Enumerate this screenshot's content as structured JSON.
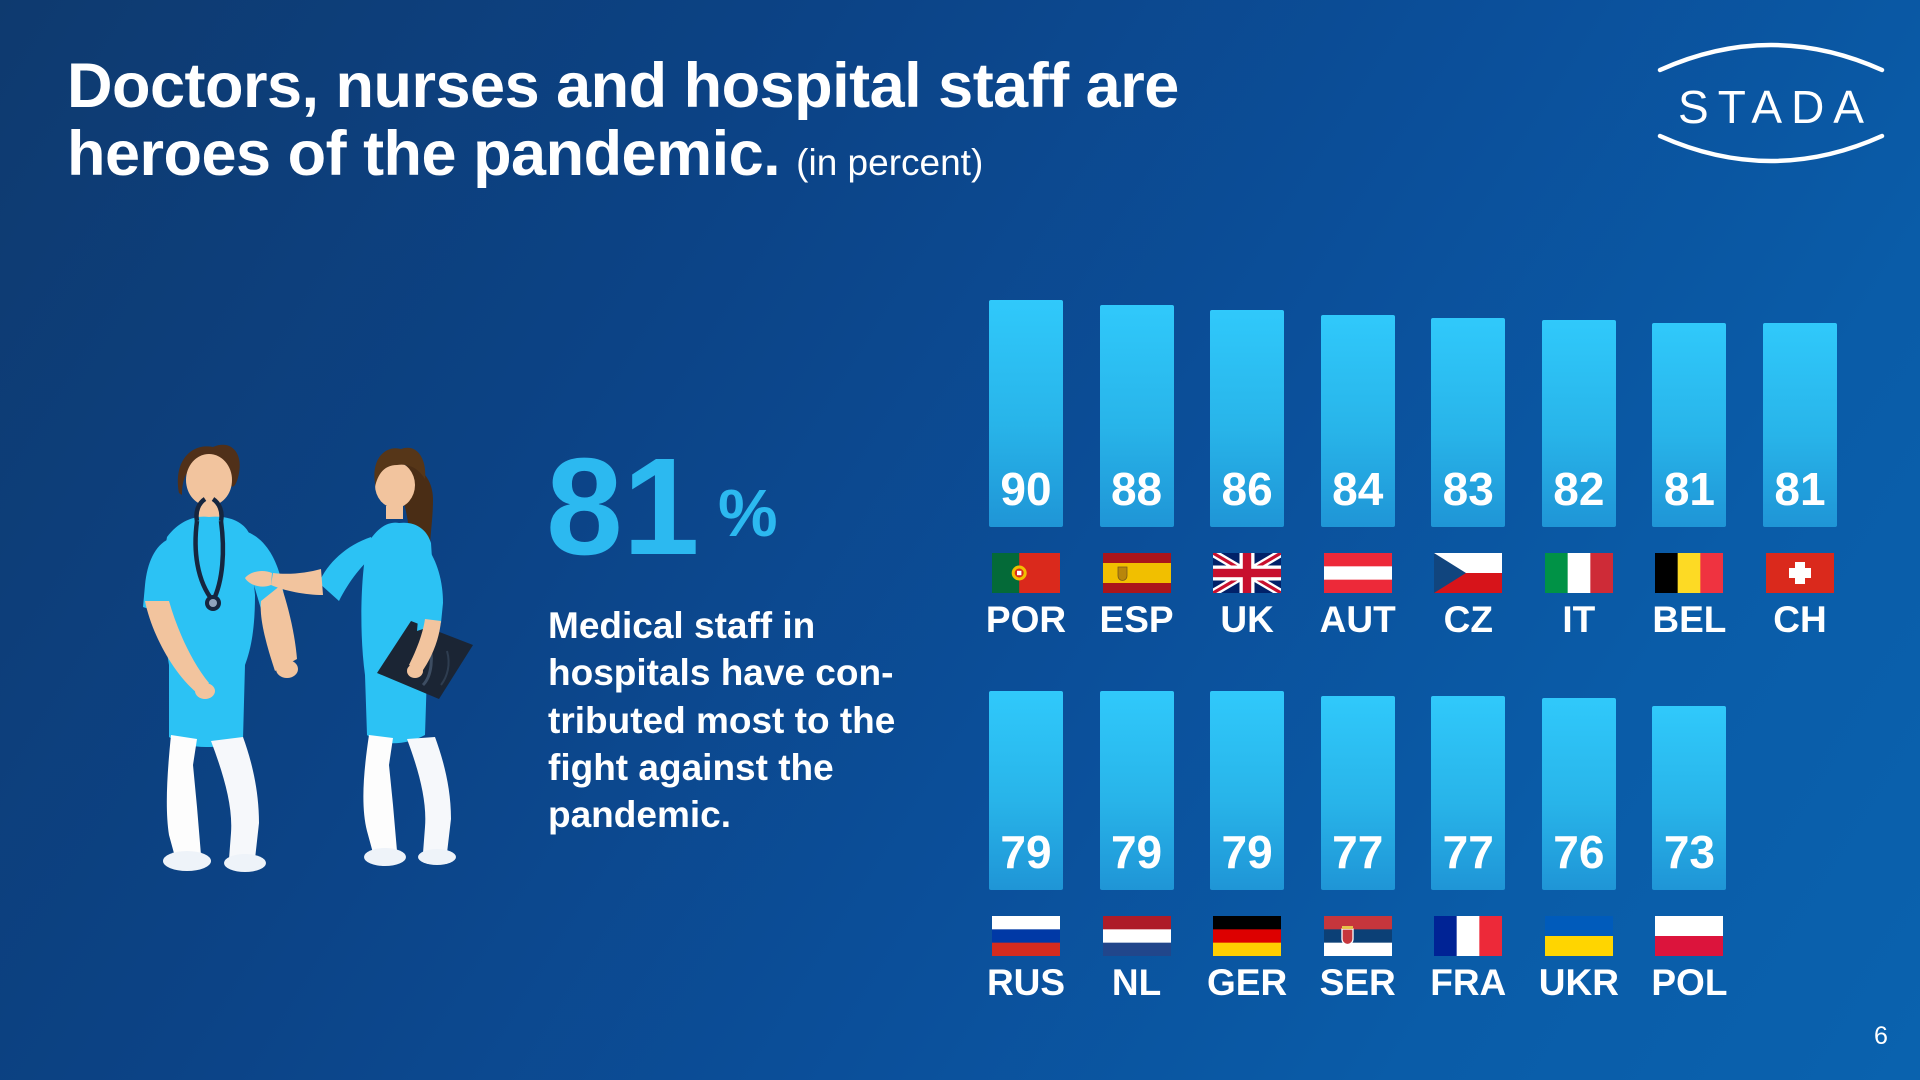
{
  "slide": {
    "title_line1": "Doctors, nurses and hospital staff are",
    "title_line2": "heroes of the pandemic.",
    "title_suffix": "(in percent)",
    "logo_text": "STADA",
    "page_number": "6"
  },
  "highlight": {
    "value": "81",
    "unit": "%",
    "description_lines": [
      "Medical staff in",
      "hospitals have con-",
      "tributed most to the",
      "fight against the",
      "pandemic."
    ]
  },
  "colors": {
    "accent": "#2cb9f0",
    "bar_top": "#30c9fb",
    "bar_bottom": "#1f95d6",
    "background_dark": "#0e3a6f",
    "background_light": "#0a62ae"
  },
  "chart_data": {
    "type": "bar",
    "unit": "percent",
    "ylim": [
      0,
      100
    ],
    "value_labels": "inside-bottom",
    "rows": [
      {
        "items": [
          {
            "code": "POR",
            "value": 90,
            "flag": "portugal"
          },
          {
            "code": "ESP",
            "value": 88,
            "flag": "spain"
          },
          {
            "code": "UK",
            "value": 86,
            "flag": "uk"
          },
          {
            "code": "AUT",
            "value": 84,
            "flag": "austria"
          },
          {
            "code": "CZ",
            "value": 83,
            "flag": "czechia"
          },
          {
            "code": "IT",
            "value": 82,
            "flag": "italy"
          },
          {
            "code": "BEL",
            "value": 81,
            "flag": "belgium"
          },
          {
            "code": "CH",
            "value": 81,
            "flag": "switzerland"
          }
        ]
      },
      {
        "items": [
          {
            "code": "RUS",
            "value": 79,
            "flag": "russia"
          },
          {
            "code": "NL",
            "value": 79,
            "flag": "netherlands"
          },
          {
            "code": "GER",
            "value": 79,
            "flag": "germany"
          },
          {
            "code": "SER",
            "value": 77,
            "flag": "serbia"
          },
          {
            "code": "FRA",
            "value": 77,
            "flag": "france"
          },
          {
            "code": "UKR",
            "value": 76,
            "flag": "ukraine"
          },
          {
            "code": "POL",
            "value": 73,
            "flag": "poland"
          }
        ]
      }
    ]
  },
  "flags": {
    "portugal": {
      "dir": "v",
      "stripes": [
        "#046A38",
        "#DA291C"
      ],
      "weights": [
        2,
        3
      ],
      "emblem": "portugal"
    },
    "spain": {
      "dir": "h",
      "stripes": [
        "#AA151B",
        "#F1BF00",
        "#AA151B"
      ],
      "weights": [
        1,
        2,
        1
      ],
      "emblem": "spain"
    },
    "uk": {
      "special": "uk",
      "field": "#012169",
      "cross": "#C8102E",
      "diagonal": "#FFFFFF"
    },
    "austria": {
      "dir": "h",
      "stripes": [
        "#ED2939",
        "#FFFFFF",
        "#ED2939"
      ]
    },
    "czechia": {
      "dir": "h",
      "stripes": [
        "#FFFFFF",
        "#D7141A"
      ],
      "triangle": "#11457E"
    },
    "italy": {
      "dir": "v",
      "stripes": [
        "#009246",
        "#FFFFFF",
        "#CE2B37"
      ]
    },
    "belgium": {
      "dir": "v",
      "stripes": [
        "#000000",
        "#FDDA24",
        "#EF3340"
      ]
    },
    "switzerland": {
      "special": "ch",
      "field": "#DA291C",
      "cross": "#FFFFFF"
    },
    "russia": {
      "dir": "h",
      "stripes": [
        "#FFFFFF",
        "#0039A6",
        "#D52B1E"
      ]
    },
    "netherlands": {
      "dir": "h",
      "stripes": [
        "#AE1C28",
        "#FFFFFF",
        "#21468B"
      ]
    },
    "germany": {
      "dir": "h",
      "stripes": [
        "#000000",
        "#DD0000",
        "#FFCE00"
      ]
    },
    "serbia": {
      "dir": "h",
      "stripes": [
        "#C6363C",
        "#0C4076",
        "#FFFFFF"
      ],
      "emblem": "serbia"
    },
    "france": {
      "dir": "v",
      "stripes": [
        "#002395",
        "#FFFFFF",
        "#ED2939"
      ]
    },
    "ukraine": {
      "dir": "h",
      "stripes": [
        "#005BBB",
        "#FFD500"
      ]
    },
    "poland": {
      "dir": "h",
      "stripes": [
        "#FFFFFF",
        "#DC143C"
      ]
    }
  }
}
